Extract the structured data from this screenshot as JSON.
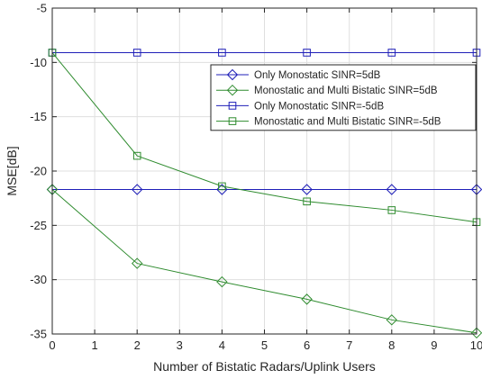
{
  "chart_data": {
    "type": "line",
    "xlabel": "Number of Bistatic Radars/Uplink Users",
    "ylabel": "MSE[dB]",
    "xlim": [
      0,
      10
    ],
    "ylim": [
      -35,
      -5
    ],
    "xticks": [
      0,
      1,
      2,
      3,
      4,
      5,
      6,
      7,
      8,
      9,
      10
    ],
    "yticks": [
      -35,
      -30,
      -25,
      -20,
      -15,
      -10,
      -5
    ],
    "xtick_labels": [
      "0",
      "1",
      "2",
      "3",
      "4",
      "5",
      "6",
      "7",
      "8",
      "9",
      "10"
    ],
    "ytick_labels": [
      "-35",
      "-30",
      "-25",
      "-20",
      "-15",
      "-10",
      "-5"
    ],
    "grid": true,
    "legend_position": "top-right",
    "x": [
      0,
      2,
      4,
      6,
      8,
      10
    ],
    "series": [
      {
        "name": "Only Monostatic SINR=5dB",
        "values": [
          -21.7,
          -21.7,
          -21.7,
          -21.7,
          -21.7,
          -21.7
        ],
        "color": "#1f1fb8",
        "marker": "diamond"
      },
      {
        "name": "Monostatic and Multi Bistatic SINR=5dB",
        "values": [
          -21.7,
          -28.5,
          -30.2,
          -31.8,
          -33.7,
          -34.9
        ],
        "color": "#2e8b2e",
        "marker": "diamond"
      },
      {
        "name": "Only Monostatic SINR=-5dB",
        "values": [
          -9.1,
          -9.1,
          -9.1,
          -9.1,
          -9.1,
          -9.1
        ],
        "color": "#1f1fb8",
        "marker": "square"
      },
      {
        "name": "Monostatic and Multi Bistatic SINR=-5dB",
        "values": [
          -9.1,
          -18.6,
          -21.4,
          -22.8,
          -23.6,
          -24.7
        ],
        "color": "#2e8b2e",
        "marker": "square"
      }
    ]
  }
}
